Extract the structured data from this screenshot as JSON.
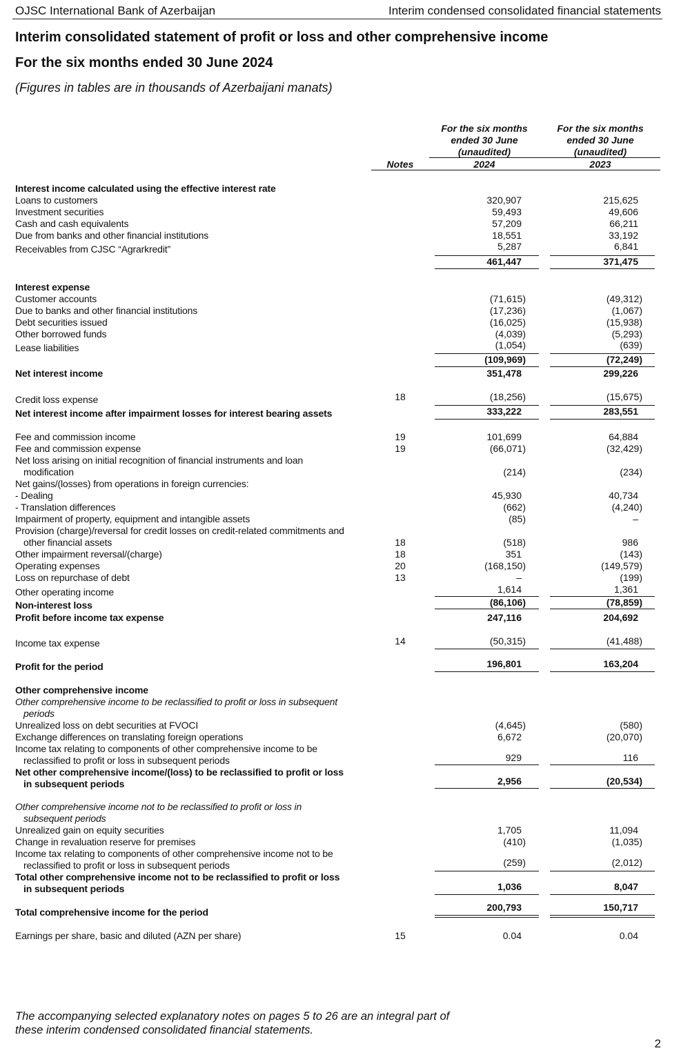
{
  "header": {
    "left": "OJSC International Bank of Azerbaijan",
    "right": "Interim condensed consolidated financial statements"
  },
  "title": "Interim consolidated statement of profit or loss and other comprehensive income",
  "subtitle": "For the six months ended 30 June 2024",
  "units_note": "(Figures in tables are in thousands of Azerbaijani manats)",
  "columns": {
    "notes": "Notes",
    "col1_head": "For the six months\nended 30 June\n(unaudited)",
    "col1_year": "2024",
    "col2_head": "For the six months\nended 30 June\n(unaudited)",
    "col2_year": "2023"
  },
  "rows": [
    {
      "label": [
        "Interest income calculated using the effective interest rate"
      ],
      "bold": true
    },
    {
      "label": [
        "Loans to customers"
      ],
      "v2024": "320,907",
      "v2023": "215,625"
    },
    {
      "label": [
        "Investment securities"
      ],
      "v2024": "59,493",
      "v2023": "49,606"
    },
    {
      "label": [
        "Cash and cash equivalents"
      ],
      "v2024": "57,209",
      "v2023": "66,211"
    },
    {
      "label": [
        "Due from banks and other financial institutions"
      ],
      "v2024": "18,551",
      "v2023": "33,192"
    },
    {
      "label": [
        "Receivables from CJSC “Agrarkredit”"
      ],
      "v2024": "5,287",
      "v2023": "6,841"
    },
    {
      "label": [],
      "bold": true,
      "v2024": "461,447",
      "v2023": "371,475"
    },
    {
      "label": [
        "Interest expense"
      ],
      "bold": true
    },
    {
      "label": [
        "Customer accounts"
      ],
      "v2024": "(71,615)",
      "v2023": "(49,312)"
    },
    {
      "label": [
        "Due to banks and other financial institutions"
      ],
      "v2024": "(17,236)",
      "v2023": "(1,067)"
    },
    {
      "label": [
        "Debt securities issued"
      ],
      "v2024": "(16,025)",
      "v2023": "(15,938)"
    },
    {
      "label": [
        "Other borrowed funds"
      ],
      "v2024": "(4,039)",
      "v2023": "(5,293)"
    },
    {
      "label": [
        "Lease liabilities"
      ],
      "v2024": "(1,054)",
      "v2023": "(639)"
    },
    {
      "label": [],
      "bold": true,
      "v2024": "(109,969)",
      "v2023": "(72,249)"
    },
    {
      "label": [
        "Net interest income"
      ],
      "bold": true,
      "v2024": "351,478",
      "v2023": "299,226"
    },
    {
      "label": [
        "Credit loss expense"
      ],
      "note": "18",
      "v2024": "(18,256)",
      "v2023": "(15,675)"
    },
    {
      "label": [
        "Net interest income after impairment losses for interest bearing assets"
      ],
      "bold": true,
      "v2024": "333,222",
      "v2023": "283,551"
    },
    {
      "label": [
        "Fee and commission income"
      ],
      "note": "19",
      "v2024": "101,699",
      "v2023": "64,884"
    },
    {
      "label": [
        "Fee and commission expense"
      ],
      "note": "19",
      "v2024": "(66,071)",
      "v2023": "(32,429)"
    },
    {
      "label": [
        "Net loss arising on initial recognition of financial instruments and loan",
        "modification"
      ],
      "v2024": "(214)",
      "v2023": "(234)"
    },
    {
      "label": [
        "Net gains/(losses) from operations in foreign currencies:"
      ]
    },
    {
      "label": [
        "- Dealing"
      ],
      "v2024": "45,930",
      "v2023": "40,734"
    },
    {
      "label": [
        "- Translation differences"
      ],
      "v2024": "(662)",
      "v2023": "(4,240)"
    },
    {
      "label": [
        "Impairment of property, equipment and intangible assets"
      ],
      "v2024": "(85)",
      "v2023": "–"
    },
    {
      "label": [
        "Provision (charge)/reversal for credit losses on credit-related commitments and",
        "other financial assets"
      ],
      "note": "18",
      "v2024": "(518)",
      "v2023": "986"
    },
    {
      "label": [
        "Other impairment reversal/(charge)"
      ],
      "note": "18",
      "v2024": "351",
      "v2023": "(143)"
    },
    {
      "label": [
        "Operating expenses"
      ],
      "note": "20",
      "v2024": "(168,150)",
      "v2023": "(149,579)"
    },
    {
      "label": [
        "Loss on repurchase of debt"
      ],
      "note": "13",
      "v2024": "–",
      "v2023": "(199)"
    },
    {
      "label": [
        "Other operating income"
      ],
      "v2024": "1,614",
      "v2023": "1,361"
    },
    {
      "label": [
        "Non-interest loss"
      ],
      "bold": true,
      "v2024": "(86,106)",
      "v2023": "(78,859)"
    },
    {
      "label": [
        "Profit before income tax expense"
      ],
      "bold": true,
      "v2024": "247,116",
      "v2023": "204,692"
    },
    {
      "label": [
        "Income tax expense"
      ],
      "note": "14",
      "v2024": "(50,315)",
      "v2023": "(41,488)"
    },
    {
      "label": [
        "Profit for the period"
      ],
      "bold": true,
      "v2024": "196,801",
      "v2023": "163,204"
    },
    {
      "label": [
        "Other comprehensive income"
      ],
      "bold": true
    },
    {
      "label": [
        "Other comprehensive income to be reclassified to profit or loss in subsequent",
        "periods"
      ],
      "italic": true
    },
    {
      "label": [
        "Unrealized loss on debt securities at FVOCI"
      ],
      "v2024": "(4,645)",
      "v2023": "(580)"
    },
    {
      "label": [
        "Exchange differences on translating foreign operations"
      ],
      "v2024": "6,672",
      "v2023": "(20,070)"
    },
    {
      "label": [
        "Income tax relating to components of other comprehensive income to be",
        "reclassified to profit or loss in subsequent periods"
      ],
      "v2024": "929",
      "v2023": "116"
    },
    {
      "label": [
        "Net other comprehensive income/(loss) to be reclassified to profit or loss",
        "in subsequent periods"
      ],
      "bold": true,
      "v2024": "2,956",
      "v2023": "(20,534)"
    },
    {
      "label": [
        "Other comprehensive income not to be reclassified to profit or loss in",
        "subsequent periods"
      ],
      "italic": true
    },
    {
      "label": [
        "Unrealized gain on equity securities"
      ],
      "v2024": "1,705",
      "v2023": "11,094"
    },
    {
      "label": [
        "Change in revaluation reserve for premises"
      ],
      "v2024": "(410)",
      "v2023": "(1,035)"
    },
    {
      "label": [
        "Income tax relating to components of other comprehensive income not to be",
        "reclassified to profit or loss in subsequent periods"
      ],
      "v2024": "(259)",
      "v2023": "(2,012)"
    },
    {
      "label": [
        "Total other comprehensive income not to be reclassified to profit or loss",
        "in subsequent periods"
      ],
      "bold": true,
      "v2024": "1,036",
      "v2023": "8,047"
    },
    {
      "label": [
        "Total comprehensive income for the period"
      ],
      "bold": true,
      "v2024": "200,793",
      "v2023": "150,717"
    },
    {
      "label": [
        "Earnings per share, basic and diluted (AZN per share)"
      ],
      "note": "15",
      "v2024": "0.04",
      "v2023": "0.04"
    }
  ],
  "footer": "The accompanying selected explanatory notes on pages 5 to 26 are an integral part of\nthese interim condensed consolidated financial statements.",
  "page_number": "2"
}
